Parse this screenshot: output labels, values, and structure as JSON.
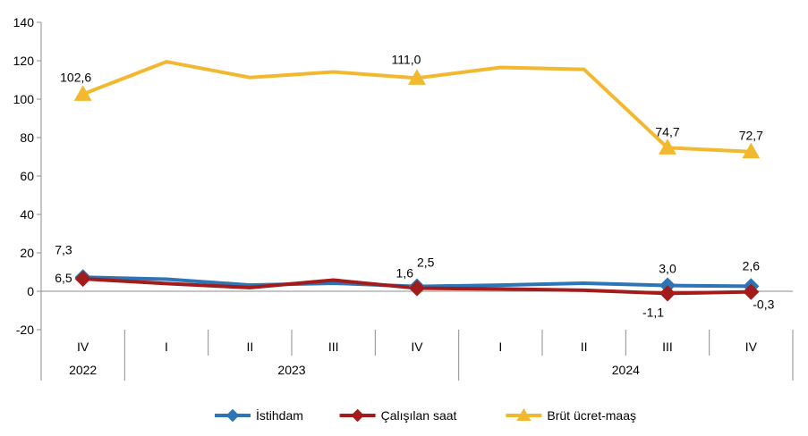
{
  "chart_data": {
    "type": "line",
    "categories": [
      "IV",
      "I",
      "II",
      "III",
      "IV",
      "I",
      "II",
      "III",
      "IV"
    ],
    "years": [
      {
        "label": "2022",
        "start": 0,
        "end": 0
      },
      {
        "label": "2023",
        "start": 1,
        "end": 4
      },
      {
        "label": "2024",
        "start": 5,
        "end": 8
      }
    ],
    "ylim": [
      -20,
      140
    ],
    "yticks": [
      "-20",
      "0",
      "20",
      "40",
      "60",
      "80",
      "100",
      "120",
      "140"
    ],
    "series": [
      {
        "name": "İstihdam",
        "color": "#2E75B6",
        "marker": "diamond",
        "values": [
          7.3,
          6.3,
          3.2,
          4.2,
          2.5,
          3.2,
          4.2,
          3.0,
          2.6
        ],
        "labels": [
          "7,3",
          "",
          "",
          "",
          "2,5",
          "",
          "",
          "3,0",
          "2,6"
        ]
      },
      {
        "name": "Çalışılan saat",
        "color": "#A31C1C",
        "marker": "diamond",
        "values": [
          6.5,
          4.0,
          1.9,
          5.8,
          1.6,
          1.2,
          0.5,
          -1.1,
          -0.3
        ],
        "labels": [
          "6,5",
          "",
          "",
          "",
          "1,6",
          "",
          "",
          "-1,1",
          "-0,3"
        ]
      },
      {
        "name": "Brüt ücret-maaş",
        "color": "#F2B830",
        "marker": "triangle",
        "values": [
          102.6,
          119.5,
          111.3,
          114.2,
          111.0,
          116.5,
          115.5,
          74.7,
          72.7
        ],
        "labels": [
          "102,6",
          "",
          "",
          "",
          "111,0",
          "",
          "",
          "74,7",
          "72,7"
        ]
      }
    ],
    "legend_position": "bottom"
  }
}
